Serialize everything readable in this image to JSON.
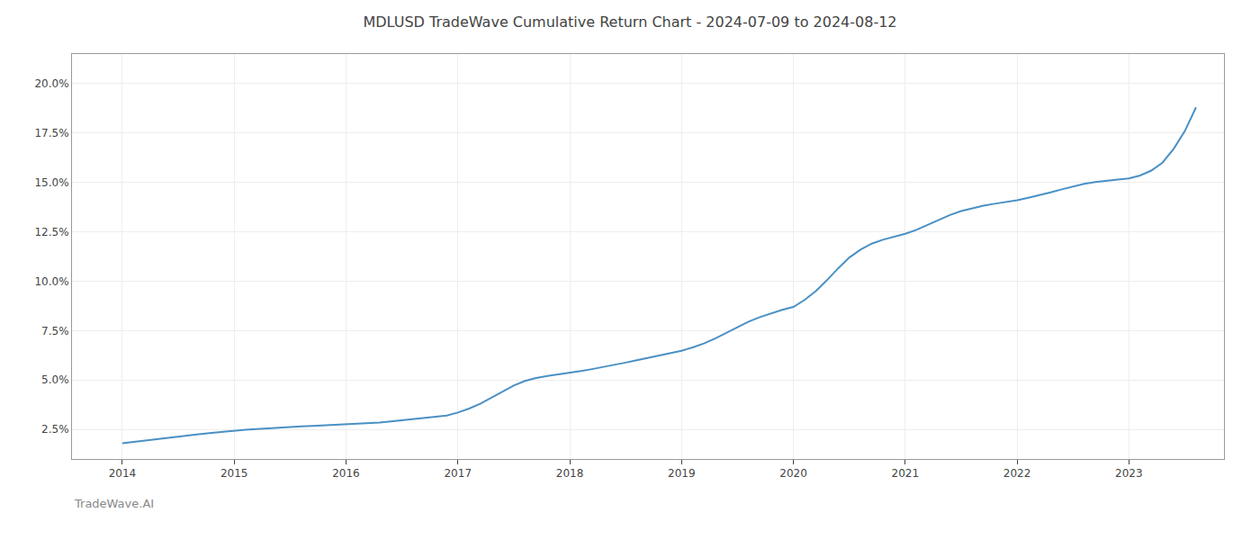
{
  "chart_data": {
    "type": "line",
    "title": "MDLUSD TradeWave Cumulative Return Chart - 2024-07-09 to 2024-08-12",
    "annotations": [
      "TradeWave.AI"
    ],
    "color": "#4a90c4",
    "grid": true,
    "x": [
      2014.0,
      2014.1,
      2014.2,
      2014.3,
      2014.4,
      2014.5,
      2014.6,
      2014.7,
      2014.8,
      2014.9,
      2015.0,
      2015.1,
      2015.2,
      2015.3,
      2015.4,
      2015.5,
      2015.6,
      2015.7,
      2015.8,
      2015.9,
      2016.0,
      2016.1,
      2016.2,
      2016.3,
      2016.4,
      2016.5,
      2016.6,
      2016.7,
      2016.8,
      2016.9,
      2017.0,
      2017.1,
      2017.2,
      2017.3,
      2017.4,
      2017.5,
      2017.6,
      2017.7,
      2017.8,
      2017.9,
      2018.0,
      2018.1,
      2018.2,
      2018.3,
      2018.4,
      2018.5,
      2018.6,
      2018.7,
      2018.8,
      2018.9,
      2019.0,
      2019.1,
      2019.2,
      2019.3,
      2019.4,
      2019.5,
      2019.6,
      2019.7,
      2019.8,
      2019.9,
      2020.0,
      2020.1,
      2020.2,
      2020.3,
      2020.4,
      2020.5,
      2020.6,
      2020.7,
      2020.8,
      2020.9,
      2021.0,
      2021.1,
      2021.2,
      2021.3,
      2021.4,
      2021.5,
      2021.6,
      2021.7,
      2021.8,
      2021.9,
      2022.0,
      2022.1,
      2022.2,
      2022.3,
      2022.4,
      2022.5,
      2022.6,
      2022.7,
      2022.8,
      2022.9,
      2023.0,
      2023.1,
      2023.2,
      2023.3,
      2023.4,
      2023.5,
      2023.6
    ],
    "values": [
      1.8,
      1.87,
      1.94,
      2.0,
      2.07,
      2.13,
      2.2,
      2.26,
      2.32,
      2.38,
      2.43,
      2.48,
      2.52,
      2.56,
      2.59,
      2.62,
      2.65,
      2.67,
      2.7,
      2.72,
      2.74,
      2.76,
      2.8,
      2.85,
      2.9,
      2.96,
      3.02,
      3.08,
      3.14,
      3.2,
      3.35,
      3.55,
      3.8,
      4.1,
      4.4,
      4.72,
      4.95,
      5.1,
      5.2,
      5.28,
      5.35,
      5.45,
      5.55,
      5.65,
      5.76,
      5.88,
      6.0,
      6.12,
      6.24,
      6.35,
      6.48,
      6.65,
      6.85,
      7.1,
      7.38,
      7.68,
      7.95,
      8.18,
      8.38,
      8.55,
      8.7,
      9.05,
      9.5,
      10.05,
      10.65,
      11.2,
      11.6,
      11.9,
      12.1,
      12.25,
      12.4,
      12.6,
      12.85,
      13.1,
      13.35,
      13.55,
      13.7,
      13.82,
      13.92,
      14.0,
      14.1,
      14.22,
      14.35,
      14.5,
      14.65,
      14.8,
      14.93,
      15.02,
      15.1,
      15.15,
      15.2,
      15.35,
      15.6,
      16.0,
      16.7,
      17.6,
      18.8
    ],
    "xlim": [
      2013.55,
      2023.85
    ],
    "ylim": [
      1.0,
      21.5
    ],
    "xticks": [
      2014,
      2015,
      2016,
      2017,
      2018,
      2019,
      2020,
      2021,
      2022,
      2023
    ],
    "yticks": [
      {
        "value": 2.5,
        "label": "2.5%"
      },
      {
        "value": 5.0,
        "label": "5.0%"
      },
      {
        "value": 7.5,
        "label": "7.5%"
      },
      {
        "value": 10.0,
        "label": "10.0%"
      },
      {
        "value": 12.5,
        "label": "12.5%"
      },
      {
        "value": 15.0,
        "label": "15.0%"
      },
      {
        "value": 17.5,
        "label": "17.5%"
      },
      {
        "value": 20.0,
        "label": "20.0%"
      }
    ]
  }
}
